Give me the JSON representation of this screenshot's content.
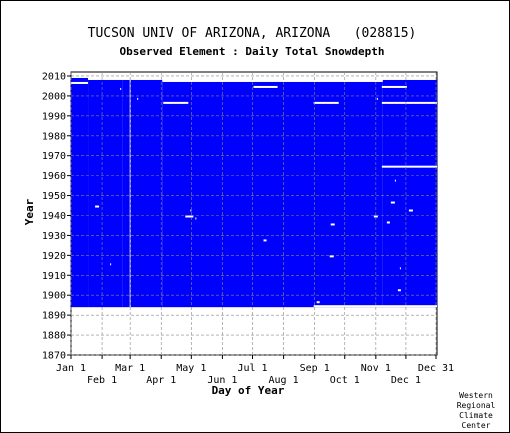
{
  "chart_data": {
    "type": "heatmap",
    "title": "TUCSON UNIV OF ARIZONA, ARIZONA   (028815)",
    "subtitle": "Observed Element : Daily Total Snowdepth",
    "xlabel": "Day of Year",
    "ylabel": "Year",
    "x_ticks_top_row": [
      "Jan 1",
      "Mar 1",
      "May 1",
      "Jul 1",
      "Sep 1",
      "Nov 1",
      "Dec 31"
    ],
    "x_ticks_bottom_row": [
      "Feb 1",
      "Apr 1",
      "Jun 1",
      "Aug 1",
      "Oct 1",
      "Dec 1"
    ],
    "x_tick_days": [
      1,
      32,
      60,
      91,
      121,
      152,
      182,
      213,
      244,
      274,
      305,
      335,
      365
    ],
    "y_ticks": [
      1870,
      1880,
      1890,
      1900,
      1910,
      1920,
      1930,
      1940,
      1950,
      1960,
      1970,
      1980,
      1990,
      2000,
      2010
    ],
    "ylim": [
      1870,
      2012
    ],
    "xlim": [
      1,
      366
    ],
    "data_fill_color": "#0000ff",
    "missing_color": "#ffffff",
    "data_extent": {
      "year_start": 1894,
      "default_year_end": 2006,
      "segments": [
        {
          "day_start": 1,
          "day_end": 18,
          "year_end": 2008
        },
        {
          "day_start": 18,
          "day_end": 52,
          "year_end": 2007
        },
        {
          "day_start": 52,
          "day_end": 92,
          "year_end": 2007
        },
        {
          "day_start": 92,
          "day_end": 312,
          "year_end": 2006
        },
        {
          "day_start": 312,
          "day_end": 366,
          "year_end": 2007
        }
      ]
    },
    "missing_runs": [
      {
        "year": 2006,
        "day_start": 1,
        "day_end": 18
      },
      {
        "year": 2004,
        "day_start": 183,
        "day_end": 207
      },
      {
        "year": 2004,
        "day_start": 311,
        "day_end": 336
      },
      {
        "year": 1996,
        "day_start": 93,
        "day_end": 118
      },
      {
        "year": 1996,
        "day_start": 243,
        "day_end": 268
      },
      {
        "year": 1996,
        "day_start": 311,
        "day_end": 366
      },
      {
        "year": 1998,
        "day_start": 67,
        "day_end": 68
      },
      {
        "year": 2003,
        "day_start": 50,
        "day_end": 51
      },
      {
        "year": 1998,
        "day_start": 306,
        "day_end": 307
      },
      {
        "year": 1964,
        "day_start": 311,
        "day_end": 366
      },
      {
        "year": 1957,
        "day_start": 324,
        "day_end": 325
      },
      {
        "year": 1946,
        "day_start": 320,
        "day_end": 324
      },
      {
        "year": 1944,
        "day_start": 25,
        "day_end": 29
      },
      {
        "year": 1942,
        "day_start": 338,
        "day_end": 342
      },
      {
        "year": 1942,
        "day_start": 120,
        "day_end": 121
      },
      {
        "year": 1939,
        "day_start": 115,
        "day_end": 123
      },
      {
        "year": 1939,
        "day_start": 303,
        "day_end": 307
      },
      {
        "year": 1938,
        "day_start": 125,
        "day_end": 126
      },
      {
        "year": 1936,
        "day_start": 316,
        "day_end": 319
      },
      {
        "year": 1935,
        "day_start": 260,
        "day_end": 264
      },
      {
        "year": 1927,
        "day_start": 193,
        "day_end": 196
      },
      {
        "year": 1919,
        "day_start": 259,
        "day_end": 263
      },
      {
        "year": 1915,
        "day_start": 40,
        "day_end": 41
      },
      {
        "year": 1913,
        "day_start": 329,
        "day_end": 330
      },
      {
        "year": 1902,
        "day_start": 327,
        "day_end": 330
      },
      {
        "year": 1896,
        "day_start": 246,
        "day_end": 249
      },
      {
        "year": 1894,
        "day_start": 243,
        "day_end": 366
      }
    ],
    "vertical_break_day": 60
  },
  "credit": [
    "Western",
    "Regional",
    "Climate",
    "Center"
  ]
}
